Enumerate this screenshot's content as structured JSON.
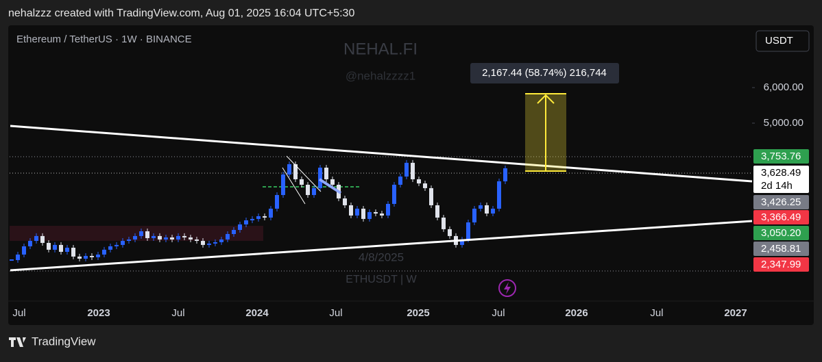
{
  "header": "nehalzzz created with TradingView.com, Aug 01, 2025 16:04 UTC+5:30",
  "footer_brand": "TradingView",
  "currency_button": "USDT",
  "watermark": {
    "brand": "NEHAL.FI",
    "handle": "@nehalzzzz1",
    "date": "4/8/2025",
    "symbol": "ETHUSDT | W"
  },
  "measure_label": "2,167.44 (58.74%) 216,744",
  "price_badges": [
    {
      "label": "3,753.76",
      "color": "#2ea04f",
      "text_color": "#ffffff"
    },
    {
      "label": "3,628.49",
      "color": "#ffffff",
      "text_color": "#000000",
      "countdown": "2d 14h"
    },
    {
      "label": "3,426.25",
      "color": "#787b86",
      "text_color": "#ffffff"
    },
    {
      "label": "3,366.49",
      "color": "#f23645",
      "text_color": "#ffffff"
    },
    {
      "label": "3,050.20",
      "color": "#2ea04f",
      "text_color": "#ffffff"
    },
    {
      "label": "2,458.81",
      "color": "#787b86",
      "text_color": "#ffffff"
    },
    {
      "label": "2,347.99",
      "color": "#f23645",
      "text_color": "#ffffff"
    }
  ],
  "chart_data": {
    "type": "candlestick",
    "title": "Ethereum / TetherUS · 1W · BINANCE",
    "values": [
      2478,
      2549,
      2659,
      2734,
      2803,
      2706,
      2613,
      2678,
      2585,
      2640,
      2523,
      2496,
      2531,
      2514,
      2549,
      2613,
      2659,
      2678,
      2734,
      2754,
      2803,
      2872,
      2773,
      2803,
      2754,
      2783,
      2754,
      2803,
      2783,
      2754,
      2734,
      2678,
      2697,
      2716,
      2754,
      2832,
      2892,
      2975,
      3038,
      3060,
      3103,
      3081,
      3225,
      3459,
      3843,
      4051,
      3750,
      3646,
      3459,
      3583,
      3980,
      3750,
      3646,
      3399,
      3282,
      3114,
      3225,
      3060,
      3169,
      3146,
      3114,
      3305,
      3646,
      3803,
      4080,
      3750,
      3671,
      3583,
      3282,
      3081,
      2903,
      2803,
      2678,
      2754,
      3006,
      3225,
      3282,
      3146,
      3225,
      3711,
      3967
    ],
    "up_color": "#2962ff",
    "down_color": "#e0e3eb",
    "log_scale": true,
    "ylim": [
      2008,
      8170
    ],
    "yticks": [
      {
        "value": 5000,
        "label": "5,000.00"
      },
      {
        "value": 6000,
        "label": "6,000.00"
      }
    ],
    "x_labels": [
      "Jul",
      "2023",
      "Jul",
      "2024",
      "Jul",
      "2025",
      "Jul",
      "2026",
      "Jul",
      "2027"
    ]
  }
}
